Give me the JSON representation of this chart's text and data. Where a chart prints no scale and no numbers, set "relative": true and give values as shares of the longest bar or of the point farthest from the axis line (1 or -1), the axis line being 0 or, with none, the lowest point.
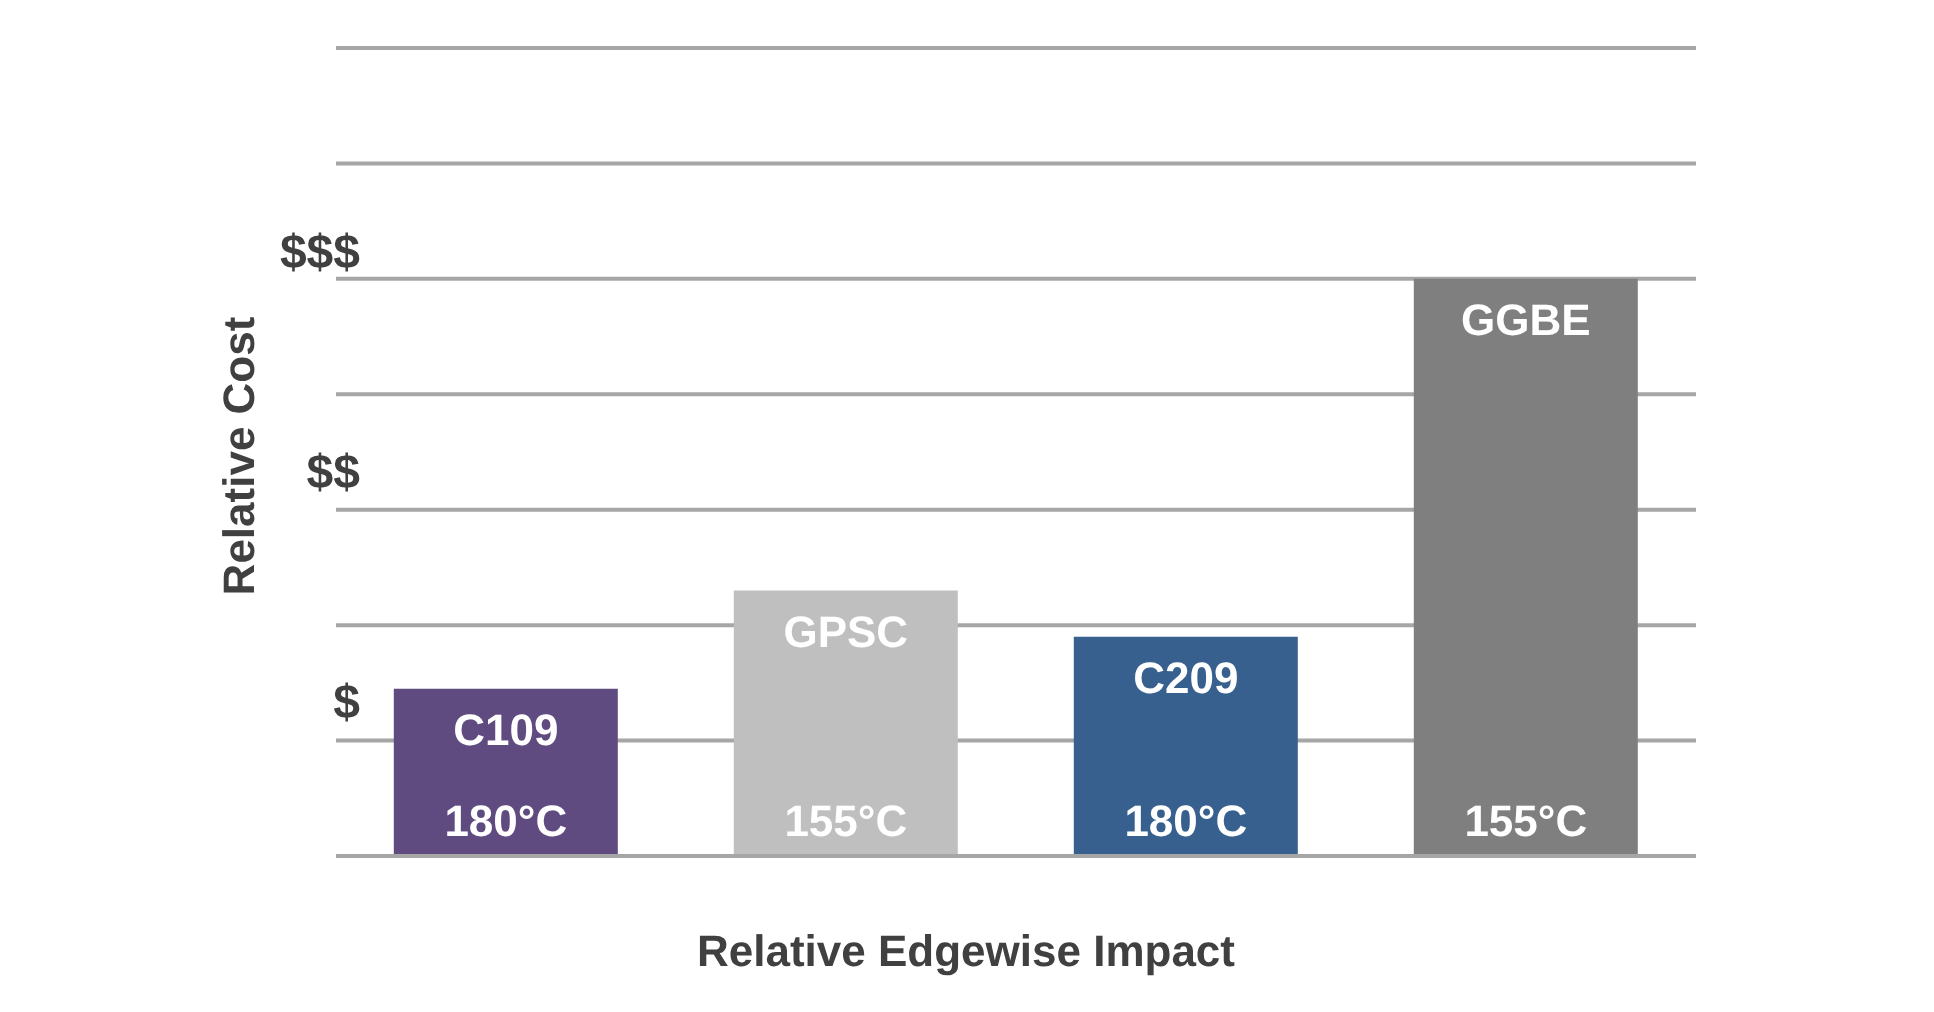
{
  "chart_data": {
    "type": "bar",
    "xlabel": "Relative Edgewise Impact",
    "ylabel": "Relative Cost",
    "categories": [
      "C109",
      "GPSC",
      "C209",
      "GGBE"
    ],
    "values": [
      0.29,
      0.46,
      0.38,
      1
    ],
    "colors": [
      "#5f4b80",
      "#bfbfbf",
      "#37608f",
      "#7f7f7f"
    ],
    "relative": true,
    "grid": "y",
    "tick_labels": false,
    "annotations": [
      "$",
      "$$",
      "$$$",
      "180°C",
      "155°C",
      "180°C",
      "155°C"
    ]
  }
}
